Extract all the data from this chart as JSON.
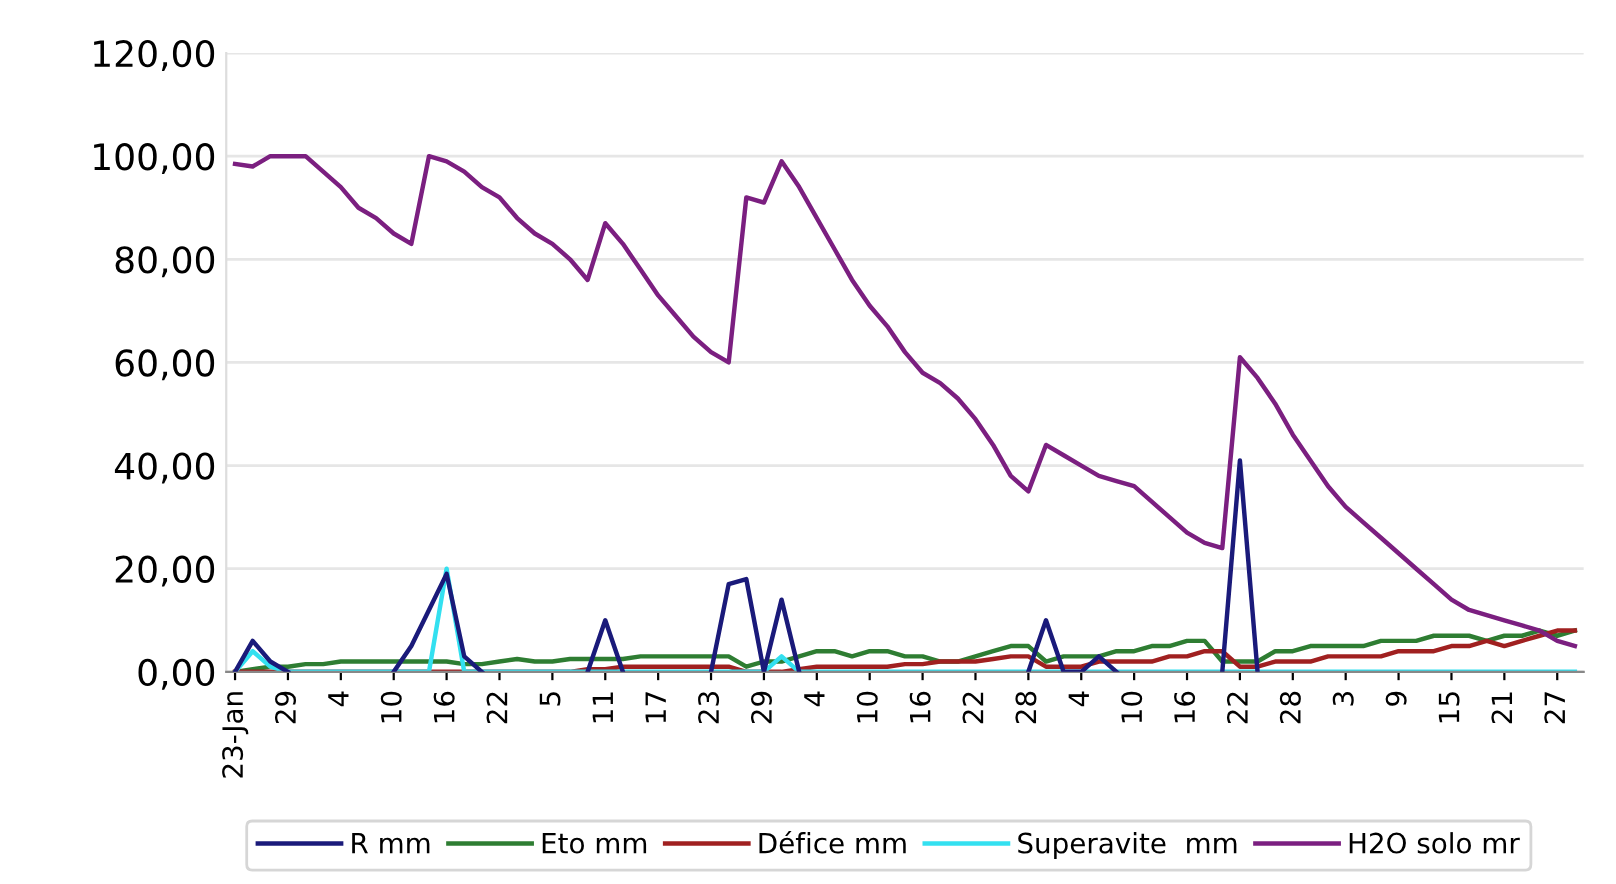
{
  "chart_data": {
    "type": "line",
    "categories": [
      "23-Jan",
      null,
      null,
      "29",
      null,
      null,
      "4",
      null,
      null,
      "10",
      null,
      null,
      "16",
      null,
      null,
      "22",
      null,
      null,
      "5",
      null,
      null,
      "11",
      null,
      null,
      "17",
      null,
      null,
      "23",
      null,
      null,
      "29",
      null,
      null,
      "4",
      null,
      null,
      "10",
      null,
      null,
      "16",
      null,
      null,
      "22",
      null,
      null,
      "28",
      null,
      null,
      "4",
      null,
      null,
      "10",
      null,
      null,
      "16",
      null,
      null,
      "22",
      null,
      null,
      "28",
      null,
      null,
      "3",
      null,
      null,
      "9",
      null,
      null,
      "15",
      null,
      null,
      "21",
      null,
      null,
      "27",
      null
    ],
    "series": [
      {
        "name": "R mm",
        "color": "#1a1a7a",
        "values": [
          0,
          6,
          2,
          0,
          null,
          null,
          null,
          null,
          null,
          0,
          5,
          12,
          19,
          3,
          0,
          null,
          null,
          null,
          null,
          null,
          0,
          10,
          0,
          null,
          null,
          null,
          null,
          0,
          17,
          18,
          0,
          14,
          0,
          null,
          null,
          null,
          null,
          null,
          null,
          null,
          null,
          null,
          null,
          null,
          null,
          0,
          10,
          0,
          0,
          3,
          0,
          null,
          null,
          null,
          null,
          null,
          0,
          41,
          0,
          null,
          null,
          null,
          null,
          null,
          null,
          null,
          null,
          null,
          null,
          null,
          null,
          null,
          null,
          null,
          null,
          null,
          null
        ]
      },
      {
        "name": "Eto mm",
        "color": "#2e7d32",
        "values": [
          0,
          0.5,
          1,
          1,
          1.5,
          1.5,
          2,
          2,
          2,
          2,
          2,
          2,
          2,
          1.5,
          1.5,
          2,
          2.5,
          2,
          2,
          2.5,
          2.5,
          2.5,
          2.5,
          3,
          3,
          3,
          3,
          3,
          3,
          1,
          2,
          2,
          3,
          4,
          4,
          3,
          4,
          4,
          3,
          3,
          2,
          2,
          3,
          4,
          5,
          5,
          2,
          3,
          3,
          3,
          4,
          4,
          5,
          5,
          6,
          6,
          2,
          2,
          2,
          4,
          4,
          5,
          5,
          5,
          5,
          6,
          6,
          6,
          7,
          7,
          7,
          6,
          7,
          7,
          8,
          7,
          8
        ]
      },
      {
        "name": "Défice mm",
        "color": "#a02020",
        "values": [
          0,
          0,
          0,
          0,
          0,
          0,
          0,
          0,
          0,
          0,
          0,
          0,
          0,
          0,
          0,
          0,
          0,
          0,
          0,
          0,
          0.5,
          0.5,
          1,
          1,
          1,
          1,
          1,
          1,
          1,
          0,
          0,
          0,
          0.5,
          1,
          1,
          1,
          1,
          1,
          1.5,
          1.5,
          2,
          2,
          2,
          2.5,
          3,
          3,
          1,
          1,
          1,
          2,
          2,
          2,
          2,
          3,
          3,
          4,
          4,
          1,
          1,
          2,
          2,
          2,
          3,
          3,
          3,
          3,
          4,
          4,
          4,
          5,
          5,
          6,
          5,
          6,
          7,
          8,
          8
        ]
      },
      {
        "name": "Superavite  mm",
        "color": "#33e0f0",
        "values": [
          0,
          4,
          1,
          0,
          0,
          0,
          0,
          0,
          0,
          0,
          0,
          0,
          20,
          0,
          0,
          0,
          0,
          0,
          0,
          0,
          0,
          0,
          0,
          0,
          0,
          0,
          0,
          0,
          0,
          0,
          0,
          3,
          0,
          0,
          0,
          0,
          0,
          0,
          0,
          0,
          0,
          0,
          0,
          0,
          0,
          0,
          0,
          0,
          0,
          0,
          0,
          0,
          0,
          0,
          0,
          0,
          0,
          0,
          0,
          0,
          0,
          0,
          0,
          0,
          0,
          0,
          0,
          0,
          0,
          0,
          0,
          0,
          0,
          0,
          0,
          0,
          0
        ]
      },
      {
        "name": "H2O solo mr",
        "color": "#7b1f80",
        "values": [
          98.5,
          98,
          100,
          100,
          100,
          97,
          94,
          90,
          88,
          85,
          83,
          100,
          99,
          97,
          94,
          92,
          88,
          85,
          83,
          80,
          76,
          87,
          83,
          78,
          73,
          69,
          65,
          62,
          60,
          92,
          91,
          99,
          94,
          88,
          82,
          76,
          71,
          67,
          62,
          58,
          56,
          53,
          49,
          44,
          38,
          35,
          44,
          42,
          40,
          38,
          37,
          36,
          33,
          30,
          27,
          25,
          24,
          61,
          57,
          52,
          46,
          41,
          36,
          32,
          29,
          26,
          23,
          20,
          17,
          14,
          12,
          11,
          10,
          9,
          8,
          6,
          5
        ]
      }
    ],
    "ylim": [
      0,
      120
    ],
    "yticks": [
      {
        "value": 0,
        "label": "0,00"
      },
      {
        "value": 20,
        "label": "20,00"
      },
      {
        "value": 40,
        "label": "40,00"
      },
      {
        "value": 60,
        "label": "60,00"
      },
      {
        "value": 80,
        "label": "80,00"
      },
      {
        "value": 100,
        "label": "100,00"
      },
      {
        "value": 120,
        "label": "120,00"
      }
    ],
    "grid": "y",
    "legend": "bottom",
    "marker": "none",
    "line_style": "solid"
  }
}
